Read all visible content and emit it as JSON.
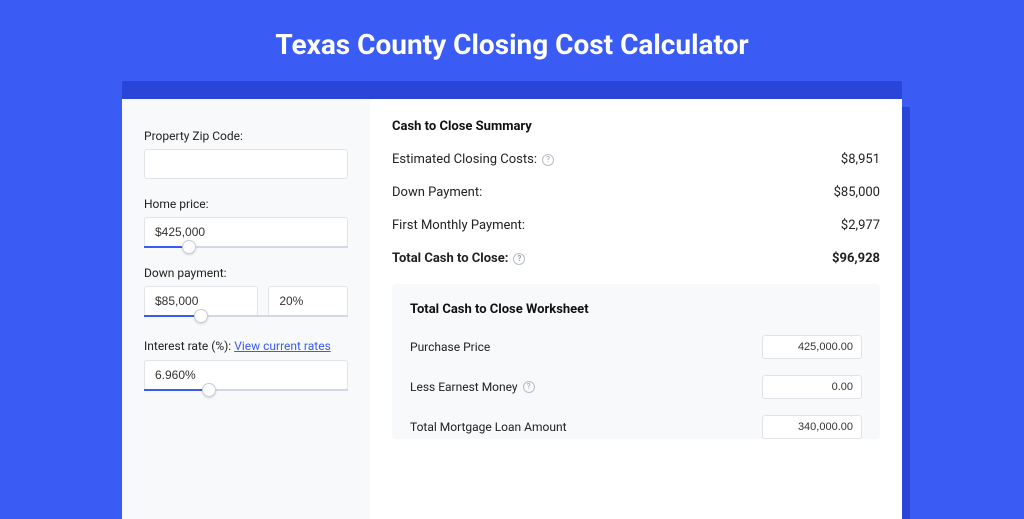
{
  "page": {
    "title": "Texas County Closing Cost Calculator",
    "colors": {
      "bg": "#3a5cf4",
      "tab_bg": "#2a46d8",
      "card_bg": "#ffffff",
      "panel_bg": "#f8f9fb",
      "slider_fill": "#3a5cf4",
      "link": "#3a5cf4"
    }
  },
  "left": {
    "zip": {
      "label": "Property Zip Code:",
      "value": ""
    },
    "home_price": {
      "label": "Home price:",
      "value": "$425,000",
      "slider_pct": 22
    },
    "down_payment": {
      "label": "Down payment:",
      "amount": "$85,000",
      "percent": "20%",
      "slider_pct": 28
    },
    "interest": {
      "label": "Interest rate (%): ",
      "link": "View current rates",
      "value": "6.960%",
      "slider_pct": 32
    }
  },
  "summary": {
    "title": "Cash to Close Summary",
    "rows": [
      {
        "label": "Estimated Closing Costs:",
        "help": true,
        "value": "$8,951",
        "bold": false
      },
      {
        "label": "Down Payment:",
        "help": false,
        "value": "$85,000",
        "bold": false
      },
      {
        "label": "First Monthly Payment:",
        "help": false,
        "value": "$2,977",
        "bold": false
      },
      {
        "label": "Total Cash to Close:",
        "help": true,
        "value": "$96,928",
        "bold": true
      }
    ]
  },
  "worksheet": {
    "title": "Total Cash to Close Worksheet",
    "rows": [
      {
        "label": "Purchase Price",
        "help": false,
        "value": "425,000.00"
      },
      {
        "label": "Less Earnest Money",
        "help": true,
        "value": "0.00"
      },
      {
        "label": "Total Mortgage Loan Amount",
        "help": false,
        "value": "340,000.00"
      }
    ]
  }
}
